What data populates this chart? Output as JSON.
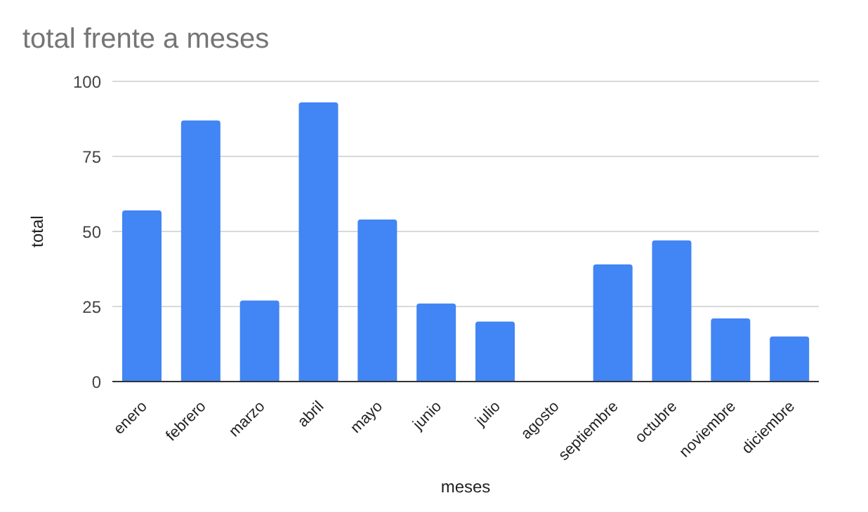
{
  "chart_data": {
    "type": "bar",
    "title": "total frente a meses",
    "xlabel": "meses",
    "ylabel": "total",
    "categories": [
      "enero",
      "febrero",
      "marzo",
      "abril",
      "mayo",
      "junio",
      "julio",
      "agosto",
      "septiembre",
      "octubre",
      "noviembre",
      "diciembre"
    ],
    "values": [
      57,
      87,
      27,
      93,
      54,
      26,
      20,
      0,
      39,
      47,
      21,
      15
    ],
    "color": "#4285f4",
    "ylim": [
      0,
      100
    ],
    "yticks": [
      0,
      25,
      50,
      75,
      100
    ],
    "grid": "y"
  }
}
